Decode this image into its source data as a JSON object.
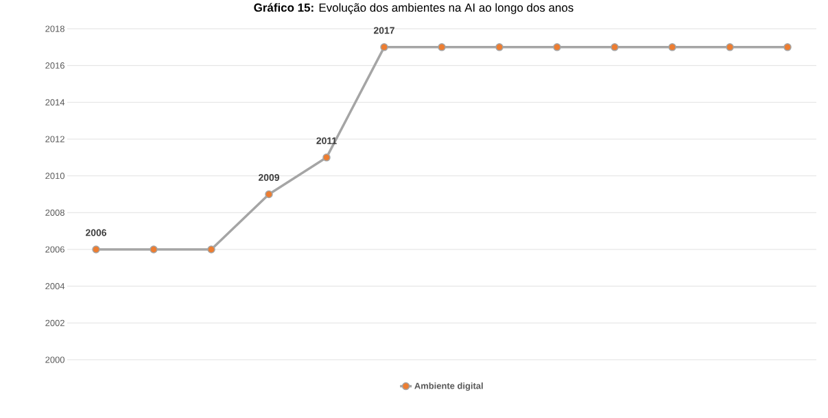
{
  "chart_data": {
    "type": "line",
    "title": "**Gráfico 15:** Evolução dos ambientes na AI ao longo dos anos",
    "categories": [
      null,
      null,
      null,
      null,
      null,
      null,
      null,
      null,
      null,
      null,
      null,
      null,
      null
    ],
    "series": [
      {
        "name": "Ambiente digital",
        "color": "#a5a5a5",
        "values": [
          2006,
          2006,
          2006,
          2009,
          2011,
          2017,
          2017,
          2017,
          2017,
          2017,
          2017,
          2017,
          2017
        ],
        "value_labels": [
          "2006",
          null,
          null,
          "2009",
          "2011",
          "2017",
          null,
          null,
          null,
          null,
          null,
          null,
          null
        ]
      }
    ],
    "ylim": [
      2000,
      2018
    ],
    "yticks": [
      2000,
      2002,
      2004,
      2006,
      2008,
      2010,
      2012,
      2014,
      2016,
      2018
    ],
    "grid": "y",
    "legend": "bottom",
    "marker": "circle",
    "line_style": "solid"
  }
}
